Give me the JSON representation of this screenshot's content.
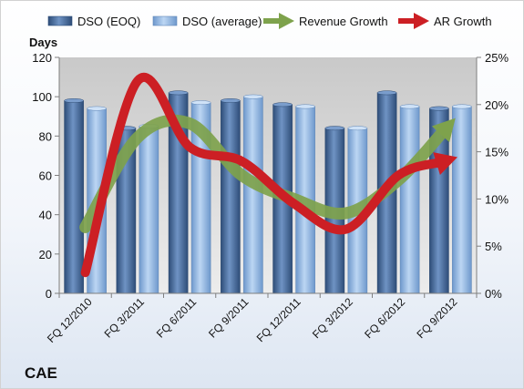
{
  "chart_data": {
    "type": "bar",
    "title": "CAE",
    "ylabel": "Days",
    "y2label": "",
    "xlabel": "",
    "ylim": [
      0,
      120
    ],
    "y_ticks": [
      "0",
      "20",
      "40",
      "60",
      "80",
      "100",
      "120"
    ],
    "y2lim": [
      0,
      0.25
    ],
    "y2_ticks": [
      "0%",
      "5%",
      "10%",
      "15%",
      "20%",
      "25%"
    ],
    "grid": false,
    "legend_position": "top",
    "categories": [
      "FQ 12/2010",
      "FQ 3/2011",
      "FQ 6/2011",
      "FQ 9/2011",
      "FQ 12/2011",
      "FQ 3/2012",
      "FQ 6/2012",
      "FQ 9/2012"
    ],
    "series": [
      {
        "name": "DSO (EOQ)",
        "kind": "bar",
        "axis": "left",
        "color": "#4a6d9c",
        "values": [
          98,
          84,
          102,
          98,
          96,
          84,
          102,
          94
        ]
      },
      {
        "name": "DSO (average)",
        "kind": "bar",
        "axis": "left",
        "color": "#8fb4df",
        "values": [
          94,
          85,
          97,
          100,
          95,
          84,
          95,
          95
        ]
      },
      {
        "name": "Revenue Growth",
        "kind": "arrow-line",
        "axis": "right",
        "color": "#7ea24c",
        "values": [
          0.07,
          0.165,
          0.18,
          0.125,
          0.1,
          0.085,
          0.12,
          0.18
        ]
      },
      {
        "name": "AR Growth",
        "kind": "arrow-line",
        "axis": "right",
        "color": "#cc1f24",
        "values": [
          0.022,
          0.225,
          0.155,
          0.14,
          0.095,
          0.068,
          0.125,
          0.142
        ]
      }
    ]
  }
}
